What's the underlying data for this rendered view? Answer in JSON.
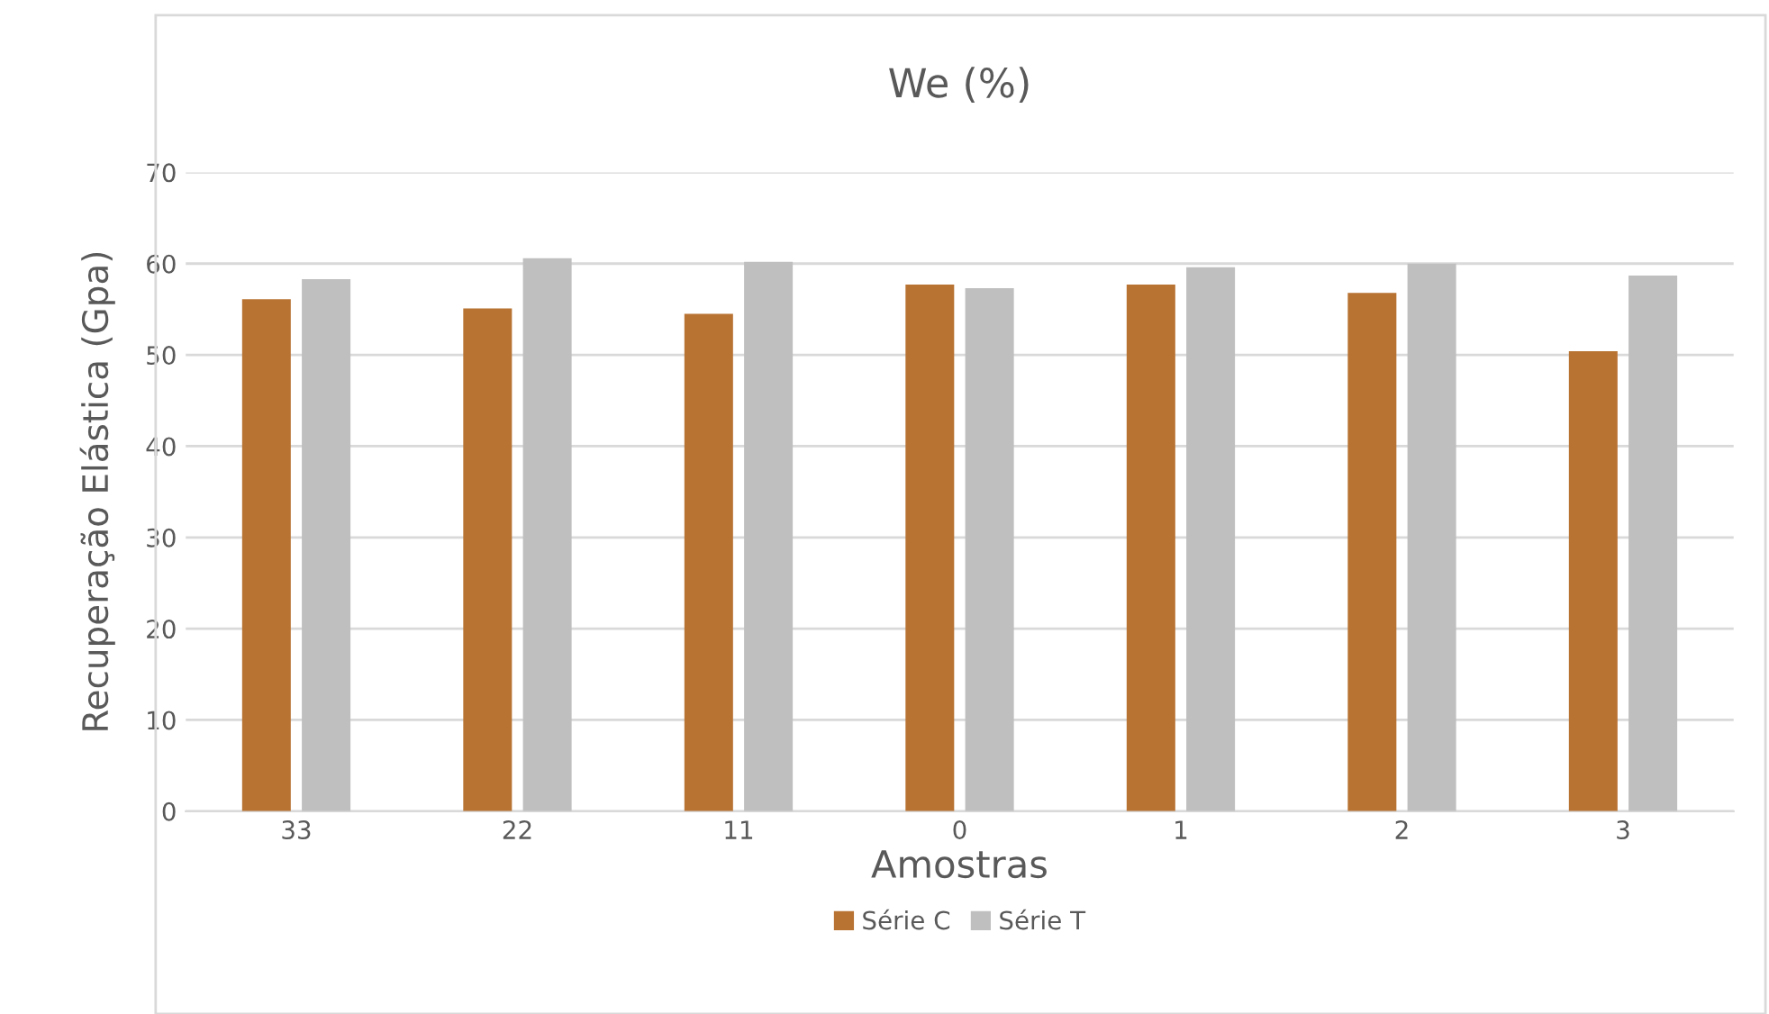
{
  "chart_data": {
    "type": "bar",
    "title": "We (%)",
    "xlabel": "Amostras",
    "ylabel": "Recuperação Elástica (Gpa)",
    "categories": [
      "33",
      "22",
      "11",
      "0",
      "1",
      "2",
      "3"
    ],
    "series": [
      {
        "name": "Série C",
        "color": "#b87333",
        "values": [
          56.1,
          55.1,
          54.5,
          57.7,
          57.7,
          56.8,
          50.4
        ]
      },
      {
        "name": "Série T",
        "color": "#bfbfbf",
        "values": [
          58.3,
          60.6,
          60.2,
          57.3,
          59.6,
          60.0,
          58.7
        ]
      }
    ],
    "ylim": [
      0,
      70
    ],
    "yticks": [
      0,
      10,
      20,
      30,
      40,
      50,
      60,
      70
    ],
    "grid": "y",
    "legend": "bottom"
  }
}
